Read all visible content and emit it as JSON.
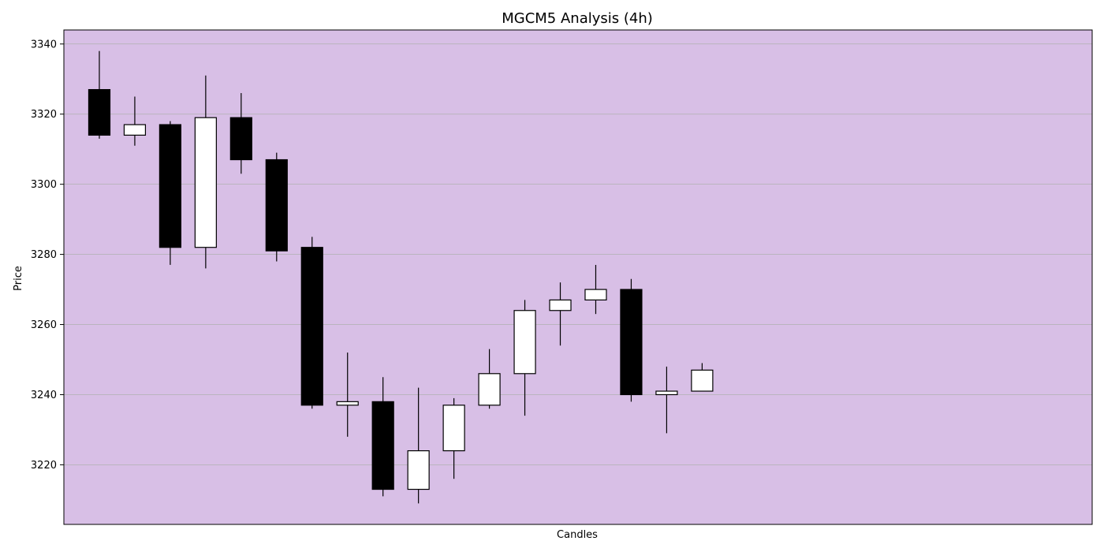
{
  "chart_data": {
    "type": "candlestick",
    "title": "MGCM5 Analysis (4h)",
    "xlabel": "Candles",
    "ylabel": "Price",
    "ylim": [
      3203,
      3344
    ],
    "yticks": [
      3220,
      3240,
      3260,
      3280,
      3300,
      3320,
      3340
    ],
    "grid": "horizontal",
    "x_slots": 29,
    "colors": {
      "background": "#d8bfe6",
      "up": "#ffffff",
      "down": "#000000",
      "edge": "#000000",
      "grid": "#b0b0b0"
    },
    "candles": [
      {
        "open": 3327,
        "high": 3338,
        "low": 3313,
        "close": 3314
      },
      {
        "open": 3314,
        "high": 3325,
        "low": 3311,
        "close": 3317
      },
      {
        "open": 3317,
        "high": 3318,
        "low": 3277,
        "close": 3282
      },
      {
        "open": 3282,
        "high": 3331,
        "low": 3276,
        "close": 3319
      },
      {
        "open": 3319,
        "high": 3326,
        "low": 3303,
        "close": 3307
      },
      {
        "open": 3307,
        "high": 3309,
        "low": 3278,
        "close": 3281
      },
      {
        "open": 3282,
        "high": 3285,
        "low": 3236,
        "close": 3237
      },
      {
        "open": 3237,
        "high": 3252,
        "low": 3228,
        "close": 3238
      },
      {
        "open": 3238,
        "high": 3245,
        "low": 3211,
        "close": 3213
      },
      {
        "open": 3213,
        "high": 3242,
        "low": 3209,
        "close": 3224
      },
      {
        "open": 3224,
        "high": 3239,
        "low": 3216,
        "close": 3237
      },
      {
        "open": 3237,
        "high": 3253,
        "low": 3236,
        "close": 3246
      },
      {
        "open": 3246,
        "high": 3267,
        "low": 3234,
        "close": 3264
      },
      {
        "open": 3264,
        "high": 3272,
        "low": 3254,
        "close": 3267
      },
      {
        "open": 3267,
        "high": 3277,
        "low": 3263,
        "close": 3270
      },
      {
        "open": 3270,
        "high": 3273,
        "low": 3238,
        "close": 3240
      },
      {
        "open": 3240,
        "high": 3248,
        "low": 3229,
        "close": 3241
      },
      {
        "open": 3241,
        "high": 3249,
        "low": 3241,
        "close": 3247
      }
    ]
  }
}
